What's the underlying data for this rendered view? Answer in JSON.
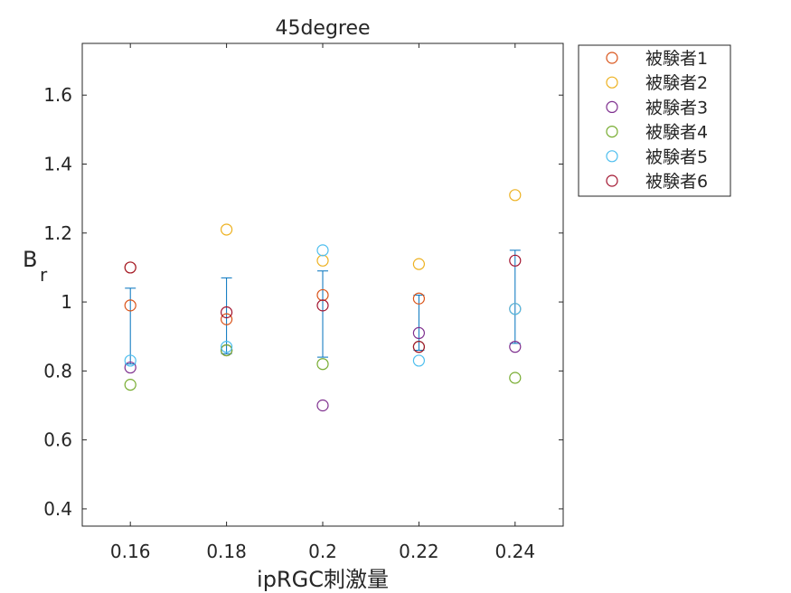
{
  "chart_data": {
    "type": "scatter",
    "title": "45degree",
    "xlabel": "ipRGC刺激量",
    "ylabel_main": "B",
    "ylabel_sub": "r",
    "xlim": [
      0.15,
      0.25
    ],
    "ylim": [
      0.35,
      1.75
    ],
    "x_ticks": [
      0.16,
      0.18,
      0.2,
      0.22,
      0.24
    ],
    "x_tick_labels": [
      "0.16",
      "0.18",
      "0.2",
      "0.22",
      "0.24"
    ],
    "y_ticks": [
      0.4,
      0.6,
      0.8,
      1.0,
      1.2,
      1.4,
      1.6
    ],
    "y_tick_labels": [
      "0.4",
      "0.6",
      "0.8",
      "1",
      "1.2",
      "1.4",
      "1.6"
    ],
    "grid": false,
    "legend_position": "outside-top-right",
    "series": [
      {
        "name": "被験者1",
        "color": "#D95319",
        "x": [
          0.16,
          0.18,
          0.2,
          0.22,
          0.24
        ],
        "y": [
          0.99,
          0.95,
          1.02,
          1.01,
          0.98
        ]
      },
      {
        "name": "被験者2",
        "color": "#EDB120",
        "x": [
          0.16,
          0.18,
          0.2,
          0.22,
          0.24
        ],
        "y": [
          1.1,
          1.21,
          1.12,
          1.11,
          1.31
        ]
      },
      {
        "name": "被験者3",
        "color": "#7E2F8E",
        "x": [
          0.16,
          0.18,
          0.2,
          0.22,
          0.24
        ],
        "y": [
          0.81,
          0.86,
          0.7,
          0.91,
          0.87
        ]
      },
      {
        "name": "被験者4",
        "color": "#77AC30",
        "x": [
          0.16,
          0.18,
          0.2,
          0.22,
          0.24
        ],
        "y": [
          0.76,
          0.86,
          0.82,
          0.87,
          0.78
        ]
      },
      {
        "name": "被験者5",
        "color": "#4DBEEE",
        "x": [
          0.16,
          0.18,
          0.2,
          0.22,
          0.24
        ],
        "y": [
          0.83,
          0.87,
          1.15,
          0.83,
          0.98
        ]
      },
      {
        "name": "被験者6",
        "color": "#A2142F",
        "x": [
          0.16,
          0.18,
          0.2,
          0.22,
          0.24
        ],
        "y": [
          1.1,
          0.97,
          0.99,
          0.87,
          1.12
        ]
      }
    ],
    "error_bars": {
      "color": "#0072BD",
      "x": [
        0.16,
        0.18,
        0.2,
        0.22,
        0.24
      ],
      "lower": [
        0.82,
        0.85,
        0.84,
        0.86,
        0.88
      ],
      "upper": [
        1.04,
        1.07,
        1.09,
        1.02,
        1.15
      ]
    }
  }
}
